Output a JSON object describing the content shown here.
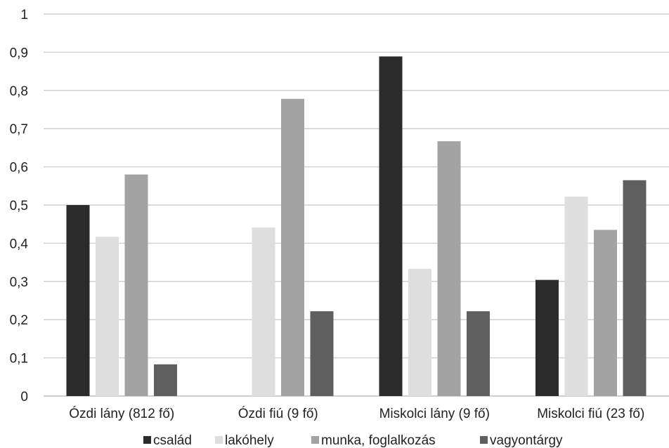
{
  "chart_data": {
    "type": "bar",
    "categories": [
      "Ózdi lány (812 fő)",
      "Ózdi fiú (9 fő)",
      "Miskolci lány (9 fő)",
      "Miskolci fiú (23 fő)"
    ],
    "series": [
      {
        "name": "család",
        "color": "#2b2b2b",
        "values": [
          0.5,
          0,
          0.889,
          0.304
        ]
      },
      {
        "name": "lakóhely",
        "color": "#dedede",
        "values": [
          0.417,
          0.441,
          0.333,
          0.522
        ]
      },
      {
        "name": "munka, foglalkozás",
        "color": "#a3a3a3",
        "values": [
          0.58,
          0.778,
          0.667,
          0.435
        ]
      },
      {
        "name": "vagyontárgy",
        "color": "#5f5f5f",
        "values": [
          0.083,
          0.222,
          0.222,
          0.565
        ]
      }
    ],
    "ylim": [
      0,
      1
    ],
    "yticks": [
      "0",
      "0,1",
      "0,2",
      "0,3",
      "0,4",
      "0,5",
      "0,6",
      "0,7",
      "0,8",
      "0,9",
      "1"
    ],
    "grid": true,
    "legend_position": "bottom"
  }
}
